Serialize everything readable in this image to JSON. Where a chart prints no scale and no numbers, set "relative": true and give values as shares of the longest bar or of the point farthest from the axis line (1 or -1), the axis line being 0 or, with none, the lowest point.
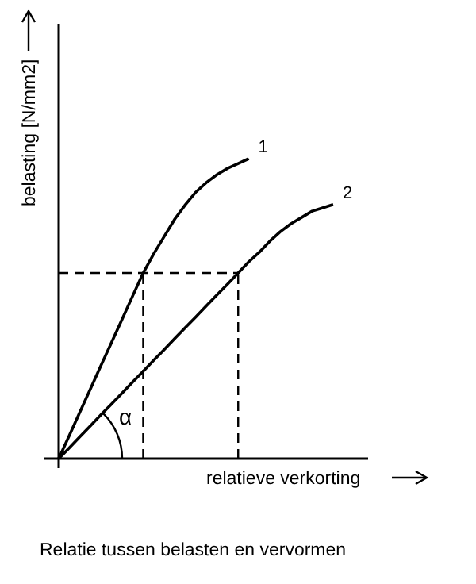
{
  "chart_data": {
    "type": "line",
    "relative": true,
    "xlabel": "relatieve verkorting",
    "ylabel": "belasting [N/mm2]",
    "legend": false,
    "marker": "none",
    "line_style": "solid",
    "categories": [
      null,
      null,
      null,
      null,
      null,
      null,
      null,
      null,
      null,
      null,
      null,
      null,
      null,
      null,
      null,
      null,
      null,
      null,
      null,
      null,
      null,
      null,
      null,
      null,
      null,
      null,
      null
    ],
    "series": [
      {
        "name": "1",
        "color": "#000000",
        "values": [
          0,
          0.077,
          0.155,
          0.232,
          0.31,
          0.387,
          0.464,
          0.542,
          0.619,
          0.683,
          0.741,
          0.799,
          0.847,
          0.889,
          0.921,
          0.947,
          0.968,
          0.984,
          1.0,
          null,
          null,
          null,
          null,
          null,
          null,
          null,
          null
        ]
      },
      {
        "name": "2",
        "color": "#000000",
        "values": [
          0,
          0.036,
          0.073,
          0.109,
          0.146,
          0.182,
          0.218,
          0.255,
          0.291,
          0.328,
          0.364,
          0.401,
          0.437,
          0.473,
          0.51,
          0.546,
          0.582,
          0.619,
          0.656,
          0.688,
          0.725,
          0.757,
          0.783,
          0.804,
          0.825,
          0.836,
          0.847
        ]
      }
    ],
    "ref_lines": [
      {
        "axis": "y",
        "value": 0.619,
        "line_style": "dashed",
        "color": "#000000"
      }
    ],
    "annotations": [
      "α",
      "Relatie tussen belasten en vervormen"
    ]
  }
}
